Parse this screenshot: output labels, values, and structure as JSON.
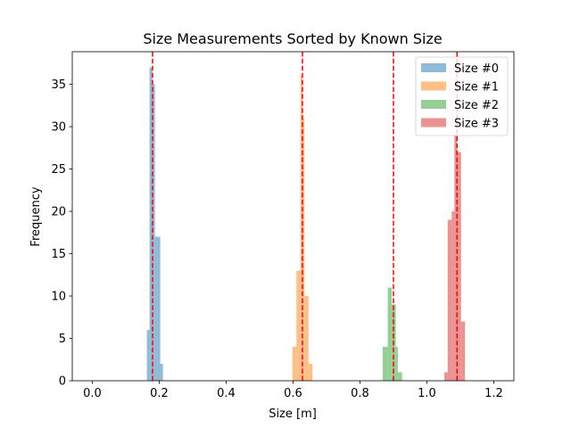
{
  "chart_data": {
    "type": "bar",
    "subtype": "histogram",
    "title": "Size Measurements Sorted by Known Size",
    "xlabel": "Size [m]",
    "ylabel": "Frequency",
    "xlim": [
      -0.06,
      1.26
    ],
    "ylim": [
      0,
      38.85
    ],
    "xticks": [
      0.0,
      0.2,
      0.4,
      0.6,
      0.8,
      1.0,
      1.2
    ],
    "xtick_labels": [
      "0.0",
      "0.2",
      "0.4",
      "0.6",
      "0.8",
      "1.0",
      "1.2"
    ],
    "yticks": [
      0,
      5,
      10,
      15,
      20,
      25,
      30,
      35
    ],
    "ytick_labels": [
      "0",
      "5",
      "10",
      "15",
      "20",
      "25",
      "30",
      "35"
    ],
    "grid": false,
    "legend_position": "top-right",
    "series": [
      {
        "name": "Size #0",
        "color": "#1f77b4",
        "alpha": 0.5,
        "bins": [
          {
            "x0": 0.163,
            "x1": 0.171,
            "count": 6
          },
          {
            "x0": 0.171,
            "x1": 0.179,
            "count": 37
          },
          {
            "x0": 0.179,
            "x1": 0.187,
            "count": 35
          },
          {
            "x0": 0.187,
            "x1": 0.195,
            "count": 17
          },
          {
            "x0": 0.195,
            "x1": 0.203,
            "count": 17
          },
          {
            "x0": 0.203,
            "x1": 0.211,
            "count": 2
          }
        ],
        "known_size": 0.18
      },
      {
        "name": "Size #1",
        "color": "#ff7f0e",
        "alpha": 0.5,
        "bins": [
          {
            "x0": 0.598,
            "x1": 0.61,
            "count": 4
          },
          {
            "x0": 0.61,
            "x1": 0.622,
            "count": 13
          },
          {
            "x0": 0.622,
            "x1": 0.628,
            "count": 36
          },
          {
            "x0": 0.628,
            "x1": 0.634,
            "count": 31
          },
          {
            "x0": 0.634,
            "x1": 0.646,
            "count": 10
          },
          {
            "x0": 0.646,
            "x1": 0.658,
            "count": 2
          }
        ],
        "known_size": 0.628
      },
      {
        "name": "Size #2",
        "color": "#2ca02c",
        "alpha": 0.5,
        "bins": [
          {
            "x0": 0.868,
            "x1": 0.883,
            "count": 4
          },
          {
            "x0": 0.883,
            "x1": 0.895,
            "count": 11
          },
          {
            "x0": 0.895,
            "x1": 0.907,
            "count": 9
          },
          {
            "x0": 0.907,
            "x1": 0.913,
            "count": 4
          },
          {
            "x0": 0.913,
            "x1": 0.926,
            "count": 1
          }
        ],
        "known_size": 0.9
      },
      {
        "name": "Size #3",
        "color": "#d62728",
        "alpha": 0.5,
        "bins": [
          {
            "x0": 1.052,
            "x1": 1.062,
            "count": 1
          },
          {
            "x0": 1.062,
            "x1": 1.074,
            "count": 19
          },
          {
            "x0": 1.074,
            "x1": 1.082,
            "count": 20
          },
          {
            "x0": 1.082,
            "x1": 1.09,
            "count": 29
          },
          {
            "x0": 1.09,
            "x1": 1.102,
            "count": 27
          },
          {
            "x0": 1.102,
            "x1": 1.114,
            "count": 7
          }
        ],
        "known_size": 1.09
      }
    ],
    "reference_lines": {
      "color": "#ff0000",
      "style": "dashed",
      "x": [
        0.18,
        0.628,
        0.9,
        1.09
      ]
    }
  }
}
